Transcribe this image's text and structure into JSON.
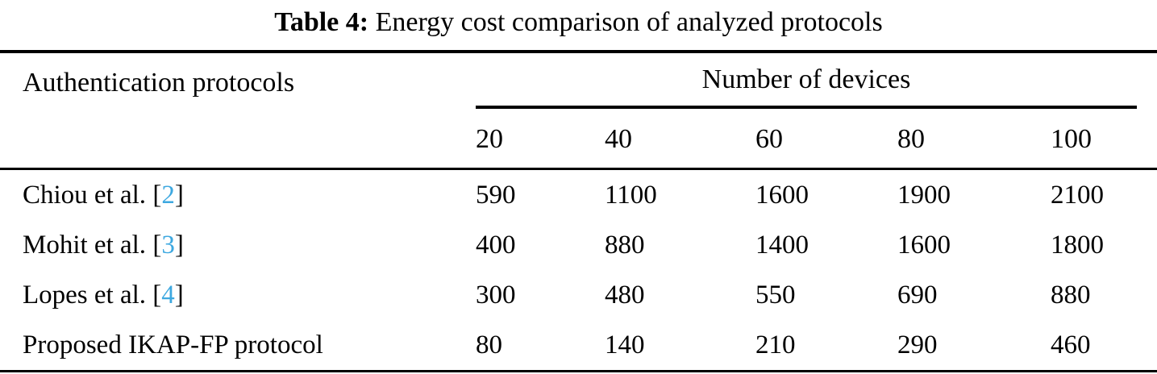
{
  "caption": {
    "label": "Table 4:",
    "text": " Energy cost comparison of analyzed protocols"
  },
  "table": {
    "protocol_header": "Authentication protocols",
    "span_header": "Number of devices",
    "device_counts": [
      "20",
      "40",
      "60",
      "80",
      "100"
    ],
    "bracket_open": "[",
    "bracket_close": "]",
    "citation_color": "#3da8e0",
    "rows": [
      {
        "protocol": "Chiou et al. ",
        "citation": "2",
        "values": [
          "590",
          "1100",
          "1600",
          "1900",
          "2100"
        ]
      },
      {
        "protocol": "Mohit et al. ",
        "citation": "3",
        "values": [
          "400",
          "880",
          "1400",
          "1600",
          "1800"
        ]
      },
      {
        "protocol": "Lopes et al. ",
        "citation": "4",
        "values": [
          "300",
          "480",
          "550",
          "690",
          "880"
        ]
      },
      {
        "protocol": "Proposed IKAP-FP protocol",
        "values": [
          "80",
          "140",
          "210",
          "290",
          "460"
        ]
      }
    ]
  }
}
